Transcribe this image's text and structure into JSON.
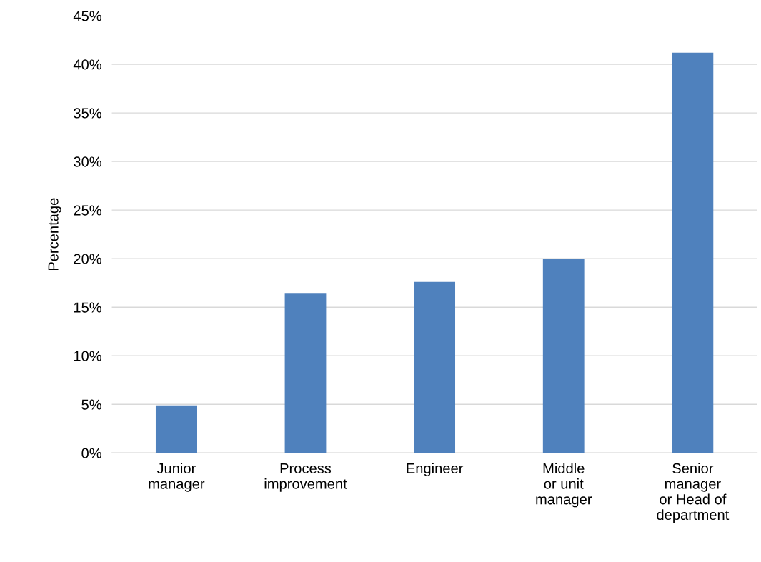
{
  "chart_data": {
    "type": "bar",
    "ylabel": "Percentage",
    "categories": [
      "Junior\nmanager",
      "Process\nimprovement",
      "Engineer",
      "Middle\nor unit\nmanager",
      "Senior\nmanager\nor Head of\ndepartment"
    ],
    "values": [
      4.9,
      16.4,
      17.6,
      20.0,
      41.2
    ],
    "color": "#4f81bd",
    "ylim": [
      0,
      45
    ],
    "yticks": [
      {
        "value": 0,
        "label": "0%"
      },
      {
        "value": 5,
        "label": "5%"
      },
      {
        "value": 10,
        "label": "10%"
      },
      {
        "value": 15,
        "label": "15%"
      },
      {
        "value": 20,
        "label": "20%"
      },
      {
        "value": 25,
        "label": "25%"
      },
      {
        "value": 30,
        "label": "30%"
      },
      {
        "value": 35,
        "label": "35%"
      },
      {
        "value": 40,
        "label": "40%"
      },
      {
        "value": 45,
        "label": "45%"
      }
    ],
    "grid": "y",
    "legend": false
  }
}
